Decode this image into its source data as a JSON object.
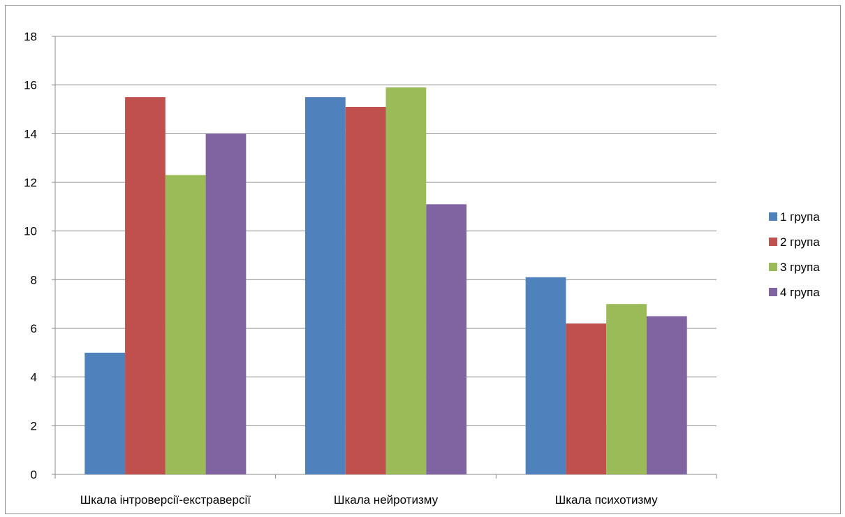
{
  "chart_data": {
    "type": "bar",
    "categories": [
      "Шкала інтроверсії-екстраверсії",
      "Шкала нейротизму",
      "Шкала психотизму"
    ],
    "series": [
      {
        "name": "1 група",
        "values": [
          5,
          15.5,
          8.1
        ],
        "color": "#4F81BD"
      },
      {
        "name": "2 група",
        "values": [
          15.5,
          15.1,
          6.2
        ],
        "color": "#C0504D"
      },
      {
        "name": "3 група",
        "values": [
          12.3,
          15.9,
          7
        ],
        "color": "#9BBB59"
      },
      {
        "name": "4 група",
        "values": [
          14,
          11.1,
          6.5
        ],
        "color": "#8064A2"
      }
    ],
    "ylim": [
      0,
      18
    ],
    "yticks": [
      0,
      2,
      4,
      6,
      8,
      10,
      12,
      14,
      16,
      18
    ],
    "grid": true,
    "legend_position": "right",
    "title": "",
    "xlabel": "",
    "ylabel": ""
  }
}
